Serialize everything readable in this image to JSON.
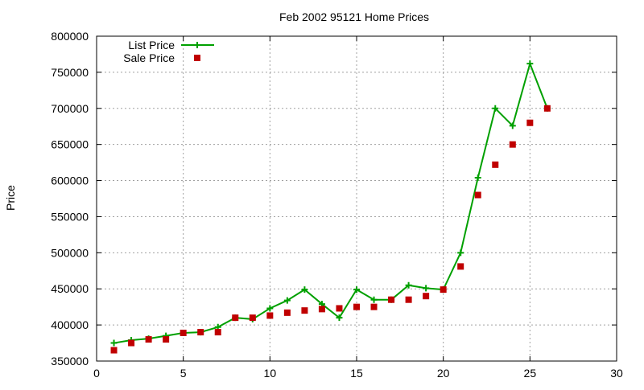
{
  "chart_data": {
    "type": "line",
    "title": "Feb 2002 95121 Home Prices",
    "xlabel": "",
    "ylabel": "Price",
    "xlim": [
      0,
      30
    ],
    "ylim": [
      350000,
      800000
    ],
    "x_ticks": [
      0,
      5,
      10,
      15,
      20,
      25,
      30
    ],
    "y_ticks": [
      350000,
      400000,
      450000,
      500000,
      550000,
      600000,
      650000,
      700000,
      750000,
      800000
    ],
    "grid": true,
    "legend_position": "top-left",
    "series": [
      {
        "name": "List Price",
        "style": "linespoints",
        "color": "#00a000",
        "marker": "plus",
        "x": [
          1,
          2,
          3,
          4,
          5,
          6,
          7,
          8,
          9,
          10,
          11,
          12,
          13,
          14,
          15,
          16,
          17,
          18,
          19,
          20,
          21,
          22,
          23,
          24,
          25,
          26
        ],
        "y": [
          375000,
          379000,
          381000,
          385000,
          389000,
          390000,
          397000,
          410000,
          408000,
          423000,
          434000,
          449000,
          429000,
          410000,
          449000,
          435000,
          435000,
          455000,
          451000,
          449000,
          500000,
          604000,
          700000,
          676000,
          762000,
          700000
        ]
      },
      {
        "name": "Sale Price",
        "style": "points",
        "color": "#c00000",
        "marker": "square",
        "x": [
          1,
          2,
          3,
          4,
          5,
          6,
          7,
          8,
          9,
          10,
          11,
          12,
          13,
          14,
          15,
          16,
          17,
          18,
          19,
          20,
          21,
          22,
          23,
          24,
          25,
          26
        ],
        "y": [
          365000,
          375000,
          380000,
          380000,
          389000,
          390000,
          390000,
          410000,
          410000,
          413000,
          417000,
          420000,
          422000,
          423000,
          425000,
          425000,
          435000,
          435000,
          440000,
          449000,
          481000,
          580000,
          622000,
          650000,
          680000,
          700000
        ]
      }
    ]
  }
}
